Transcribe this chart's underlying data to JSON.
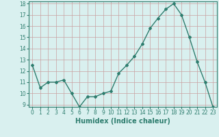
{
  "x": [
    0,
    1,
    2,
    3,
    4,
    5,
    6,
    7,
    8,
    9,
    10,
    11,
    12,
    13,
    14,
    15,
    16,
    17,
    18,
    19,
    20,
    21,
    22,
    23
  ],
  "y": [
    12.5,
    10.5,
    11.0,
    11.0,
    11.2,
    10.0,
    8.8,
    9.7,
    9.7,
    10.0,
    10.2,
    11.8,
    12.5,
    13.3,
    14.4,
    15.8,
    16.7,
    17.5,
    18.0,
    17.0,
    15.0,
    12.8,
    11.0,
    8.8
  ],
  "line_color": "#2e7d6e",
  "marker": "D",
  "marker_size": 2.0,
  "bg_color": "#d9f0ef",
  "grid_color": "#c8a0a0",
  "xlabel": "Humidex (Indice chaleur)",
  "ylim": [
    9,
    18
  ],
  "xlim": [
    -0.5,
    23.5
  ],
  "yticks": [
    9,
    10,
    11,
    12,
    13,
    14,
    15,
    16,
    17,
    18
  ],
  "xticks": [
    0,
    1,
    2,
    3,
    4,
    5,
    6,
    7,
    8,
    9,
    10,
    11,
    12,
    13,
    14,
    15,
    16,
    17,
    18,
    19,
    20,
    21,
    22,
    23
  ],
  "tick_fontsize": 5.5,
  "xlabel_fontsize": 7.0,
  "line_width": 1.0
}
